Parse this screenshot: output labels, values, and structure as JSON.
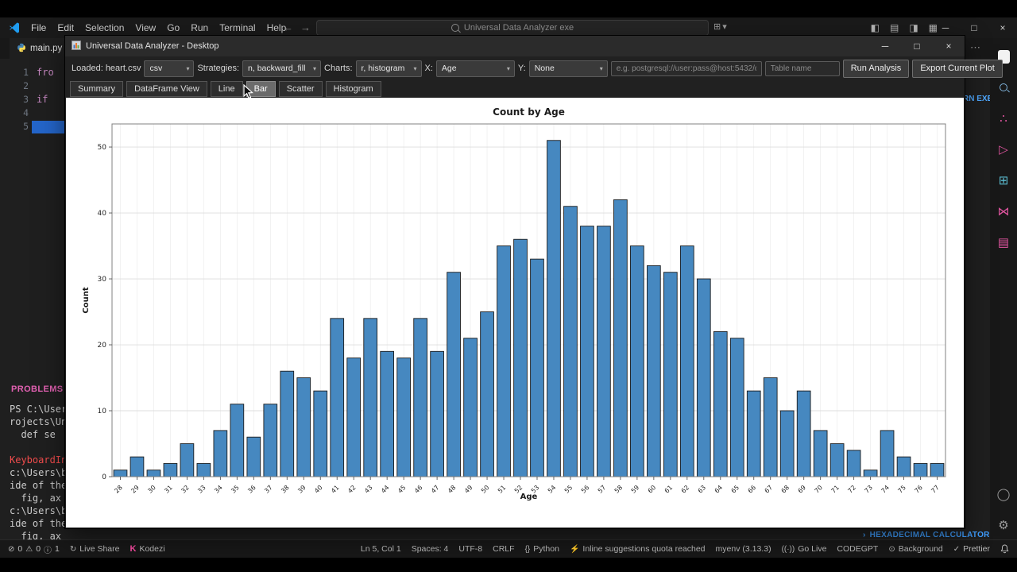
{
  "vscode": {
    "menus": [
      "File",
      "Edit",
      "Selection",
      "View",
      "Go",
      "Run",
      "Terminal",
      "Help"
    ],
    "search_text": "Universal Data Analyzer exe",
    "tab_name": "main.py",
    "gutter": [
      "1",
      "2",
      "3",
      "4",
      "5"
    ],
    "code_line1": "fro",
    "code_line3": "if",
    "problems_label": "PROBLEMS",
    "problems_badge": "1",
    "terminal_lines": [
      "PS C:\\User",
      "rojects\\Un",
      "  def se",
      "",
      "KeyboardIn",
      "c:\\Users\\b",
      "ide of the",
      "  fig, ax",
      "c:\\Users\\b",
      "ide of the",
      "  fig, ax"
    ],
    "editor_fragment": "RN EXE",
    "panel_item": "HEXADECIMAL CALCULATOR",
    "status": {
      "errors": "0",
      "warnings": "0",
      "info": "1",
      "live_share": "Live Share",
      "kodezi": "Kodezi",
      "ln_col": "Ln 5, Col 1",
      "spaces": "Spaces: 4",
      "encoding": "UTF-8",
      "eol": "CRLF",
      "language": "Python",
      "suggestions": "Inline suggestions quota reached",
      "interpreter": "myenv (3.13.3)",
      "go_live": "Go Live",
      "codegpt": "CODEGPT",
      "background": "Background",
      "prettier": "Prettier"
    }
  },
  "app": {
    "title": "Universal Data Analyzer - Desktop",
    "toolbar": {
      "loaded_label": "Loaded: heart.csv",
      "format_select": "csv",
      "strategies_label": "Strategies:",
      "strategies_select": "n, backward_fill",
      "charts_label": "Charts:",
      "charts_select": "r, histogram",
      "x_label": "X:",
      "x_select": "Age",
      "y_label": "Y:",
      "y_select": "None",
      "db_placeholder": "e.g. postgresql://user:pass@host:5432/db",
      "table_placeholder": "Table name",
      "run_button": "Run Analysis",
      "export_button": "Export Current Plot"
    },
    "tabs": [
      "Summary",
      "DataFrame View",
      "Line",
      "Bar",
      "Scatter",
      "Histogram"
    ],
    "active_tab": "Bar"
  },
  "chart_data": {
    "type": "bar",
    "title": "Count by Age",
    "xlabel": "Age",
    "ylabel": "Count",
    "categories": [
      "28",
      "29",
      "30",
      "31",
      "32",
      "33",
      "34",
      "35",
      "36",
      "37",
      "38",
      "39",
      "40",
      "41",
      "42",
      "43",
      "44",
      "45",
      "46",
      "47",
      "48",
      "49",
      "50",
      "51",
      "52",
      "53",
      "54",
      "55",
      "56",
      "57",
      "58",
      "59",
      "60",
      "61",
      "62",
      "63",
      "64",
      "65",
      "66",
      "67",
      "68",
      "69",
      "70",
      "71",
      "72",
      "73",
      "74",
      "75",
      "76",
      "77"
    ],
    "values": [
      1,
      3,
      1,
      2,
      5,
      2,
      7,
      11,
      6,
      11,
      16,
      15,
      13,
      24,
      18,
      24,
      19,
      18,
      24,
      19,
      31,
      21,
      25,
      35,
      36,
      33,
      51,
      41,
      38,
      38,
      42,
      35,
      32,
      31,
      35,
      30,
      22,
      21,
      13,
      15,
      10,
      13,
      7,
      5,
      4,
      1,
      7,
      3,
      2,
      2
    ],
    "ylim": [
      0,
      53.5
    ],
    "yticks": [
      0,
      10,
      20,
      30,
      40,
      50
    ],
    "grid": true,
    "legend": false,
    "bar_color": "#4688c0",
    "bar_edge_color": "#1c1c1c"
  }
}
